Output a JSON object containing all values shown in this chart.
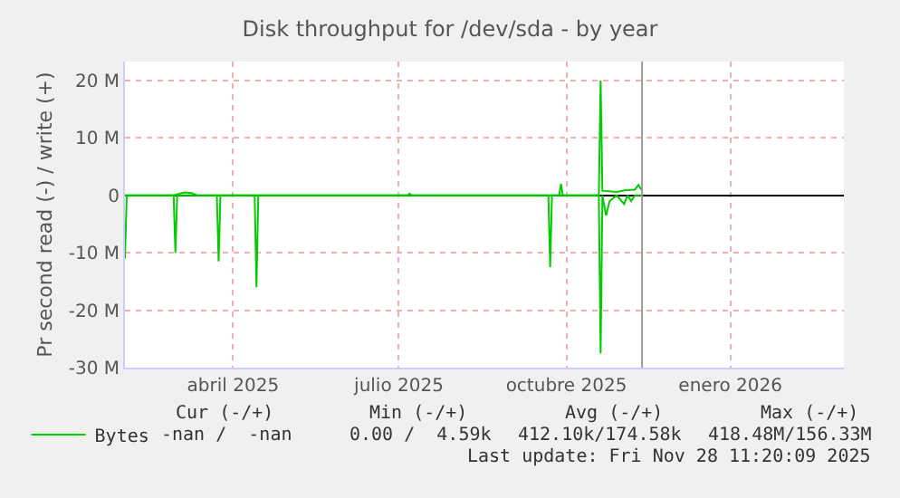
{
  "chart_data": {
    "type": "line",
    "title": "Disk throughput for /dev/sda - by year",
    "ylabel": "Pr second read (-) / write (+)",
    "xlim": [
      "2025-02-14",
      "2026-03-20"
    ],
    "xticks": [
      {
        "value": "2025-04-15",
        "label": "abril 2025"
      },
      {
        "value": "2025-07-16",
        "label": "julio 2025"
      },
      {
        "value": "2025-10-17",
        "label": "octubre 2025"
      },
      {
        "value": "2026-01-16",
        "label": "enero 2026"
      }
    ],
    "ylim": [
      -30,
      23.3
    ],
    "yticks": [
      {
        "value": -30,
        "label": "-30 M"
      },
      {
        "value": -20,
        "label": "-20 M"
      },
      {
        "value": -10,
        "label": "-10 M"
      },
      0,
      {
        "value": 10,
        "label": "10 M"
      },
      {
        "value": 20,
        "label": "20 M"
      }
    ],
    "grid": true,
    "legend": "bottom left",
    "marker": "none",
    "line_style": "solid",
    "series": [
      {
        "name": "Bytes",
        "color": "#00cc00",
        "x": [
          "2025-02-14",
          "2025-03-13",
          "2025-03-19",
          "2025-03-23",
          "2025-03-26",
          "2025-07-21",
          "2025-07-22",
          "2025-07-23",
          "2025-10-13",
          "2025-10-14",
          "2025-10-15",
          "2025-11-04",
          "2025-11-05",
          "2025-11-06",
          "2025-11-14",
          "2025-11-19",
          "2025-11-24",
          "2025-11-26",
          "2025-11-28"
        ],
        "values": [
          0,
          0,
          0.5,
          0.4,
          0,
          0,
          0.3,
          0,
          0,
          2,
          0,
          0,
          20,
          0.8,
          0.6,
          0.9,
          1,
          1.8,
          0.8
        ]
      },
      {
        "color": "#00cc00",
        "x": [
          "2025-02-14",
          "2025-02-15",
          "2025-03-13",
          "2025-03-14",
          "2025-03-15",
          "2025-04-06",
          "2025-04-07",
          "2025-04-08",
          "2025-04-27",
          "2025-04-28",
          "2025-04-29",
          "2025-10-07",
          "2025-10-08",
          "2025-10-09",
          "2025-11-04",
          "2025-11-05",
          "2025-11-06",
          "2025-11-08",
          "2025-11-10",
          "2025-11-14",
          "2025-11-18",
          "2025-11-20",
          "2025-11-22",
          "2025-11-24",
          "2025-11-28"
        ],
        "values": [
          -11,
          0,
          0,
          -10,
          0,
          0,
          -11.5,
          0,
          0,
          -16,
          0,
          0,
          -12.5,
          0,
          0,
          -27.5,
          0,
          -3.5,
          -1,
          0,
          -1.5,
          0,
          -1,
          0,
          0
        ]
      }
    ],
    "ref_lines": [
      {
        "axis": "x",
        "value": "2025-11-28",
        "color": "#999999"
      }
    ],
    "annotations": [
      "Cur (-/+)",
      "Min (-/+)",
      "Avg (-/+)",
      "Max (-/+)",
      "-nan /  -nan",
      "0.00 /  4.59k",
      "412.10k/174.58k",
      "418.48M/156.33M",
      "Last update: Fri Nov 28 11:20:09 2025"
    ]
  }
}
